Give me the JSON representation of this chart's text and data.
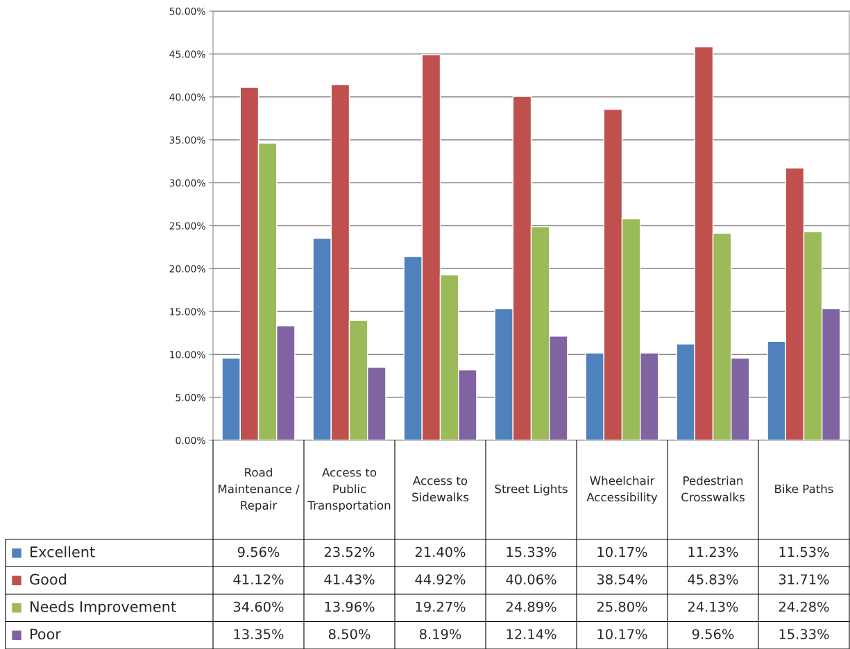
{
  "chart_data": {
    "type": "bar",
    "categories": [
      "Road Maintenance / Repair",
      "Access to Public Transportation",
      "Access to Sidewalks",
      "Street Lights",
      "Wheelchair Accessibility",
      "Pedestrian Crosswalks",
      "Bike Paths"
    ],
    "series": [
      {
        "name": "Excellent",
        "color": "#4f81bd",
        "values": [
          9.56,
          23.52,
          21.4,
          15.33,
          10.17,
          11.23,
          11.53
        ],
        "value_labels": [
          "9.56%",
          "23.52%",
          "21.40%",
          "15.33%",
          "10.17%",
          "11.23%",
          "11.53%"
        ]
      },
      {
        "name": "Good",
        "color": "#c0504d",
        "values": [
          41.12,
          41.43,
          44.92,
          40.06,
          38.54,
          45.83,
          31.71
        ],
        "value_labels": [
          "41.12%",
          "41.43%",
          "44.92%",
          "40.06%",
          "38.54%",
          "45.83%",
          "31.71%"
        ]
      },
      {
        "name": "Needs Improvement",
        "color": "#9bbb59",
        "values": [
          34.6,
          13.96,
          19.27,
          24.89,
          25.8,
          24.13,
          24.28
        ],
        "value_labels": [
          "34.60%",
          "13.96%",
          "19.27%",
          "24.89%",
          "25.80%",
          "24.13%",
          "24.28%"
        ]
      },
      {
        "name": "Poor",
        "color": "#8064a2",
        "values": [
          13.35,
          8.5,
          8.19,
          12.14,
          10.17,
          9.56,
          15.33
        ],
        "value_labels": [
          "13.35%",
          "8.50%",
          "8.19%",
          "12.14%",
          "10.17%",
          "9.56%",
          "15.33%"
        ]
      }
    ],
    "ylim": [
      0,
      50
    ],
    "yticks": [
      {
        "value": 0,
        "label": "0.00%"
      },
      {
        "value": 5,
        "label": "5.00%"
      },
      {
        "value": 10,
        "label": "10.00%"
      },
      {
        "value": 15,
        "label": "15.00%"
      },
      {
        "value": 20,
        "label": "20.00%"
      },
      {
        "value": 25,
        "label": "25.00%"
      },
      {
        "value": 30,
        "label": "30.00%"
      },
      {
        "value": 35,
        "label": "35.00%"
      },
      {
        "value": 40,
        "label": "40.00%"
      },
      {
        "value": 45,
        "label": "45.00%"
      },
      {
        "value": 50,
        "label": "50.00%"
      }
    ],
    "grid": "y",
    "legend": "bottom"
  }
}
